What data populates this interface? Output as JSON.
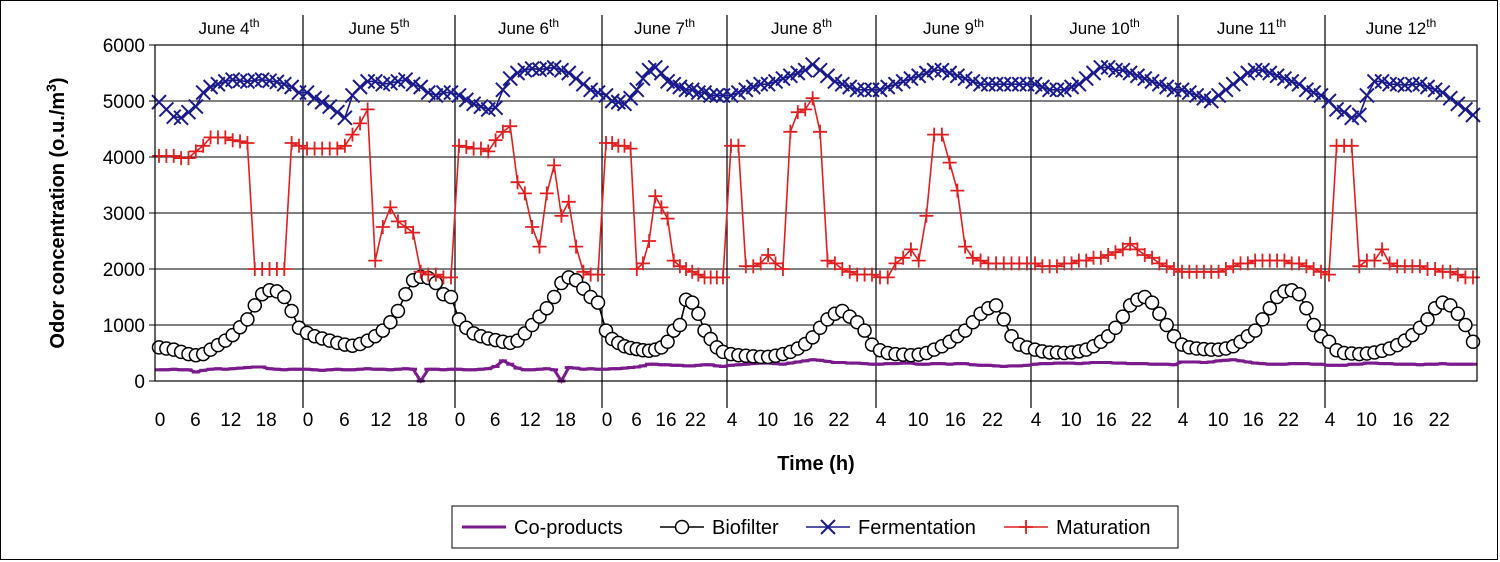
{
  "chart_data": {
    "type": "line",
    "xlabel": "Time (h)",
    "ylabel": "Odor concentration (o.u./m",
    "ylabel_sup": "3",
    "ylabel_close": ")",
    "ylim": [
      0,
      6000
    ],
    "yticks": [
      "0",
      "1000",
      "2000",
      "3000",
      "4000",
      "5000",
      "6000"
    ],
    "grid": "horizontal",
    "legend_position": "bottom",
    "days": [
      {
        "label": "June 4",
        "sup": "th"
      },
      {
        "label": "June 5",
        "sup": "th"
      },
      {
        "label": "June 6",
        "sup": "th"
      },
      {
        "label": "June 7",
        "sup": "th"
      },
      {
        "label": "June 8",
        "sup": "th"
      },
      {
        "label": "June 9",
        "sup": "th"
      },
      {
        "label": "June 10",
        "sup": "th"
      },
      {
        "label": "June 11",
        "sup": "th"
      },
      {
        "label": "June 12",
        "sup": "th"
      }
    ],
    "day_ticks": [
      [
        "0",
        "6",
        "12",
        "18"
      ],
      [
        "0",
        "6",
        "12",
        "18"
      ],
      [
        "0",
        "6",
        "12",
        "18"
      ],
      [
        "0",
        "6",
        "16",
        "22"
      ],
      [
        "4",
        "10",
        "16",
        "22"
      ],
      [
        "4",
        "10",
        "16",
        "22"
      ],
      [
        "4",
        "10",
        "16",
        "22"
      ],
      [
        "4",
        "10",
        "16",
        "22"
      ],
      [
        "4",
        "10",
        "16",
        "22"
      ]
    ],
    "series": [
      {
        "name": "Co-products",
        "color": "#7a1a8c",
        "marker": "dash",
        "values": [
          [
            200,
            200,
            210,
            200,
            200,
            160,
            190,
            210,
            220,
            210,
            220,
            230,
            240,
            250,
            250,
            220,
            210,
            200,
            210,
            210
          ],
          [
            210,
            200,
            190,
            200,
            210,
            200,
            200,
            210,
            220,
            210,
            210,
            200,
            210,
            220,
            210,
            0,
            210,
            210,
            200,
            210
          ],
          [
            210,
            200,
            200,
            210,
            220,
            260,
            360,
            300,
            230,
            200,
            200,
            210,
            220,
            200,
            0,
            240,
            230,
            210,
            220,
            210
          ],
          [
            210,
            220,
            220,
            230,
            240,
            250,
            270,
            300,
            300,
            290,
            290,
            280,
            280,
            270,
            270,
            280,
            290,
            290,
            270,
            260
          ],
          [
            280,
            290,
            300,
            310,
            320,
            320,
            310,
            300,
            320,
            340,
            360,
            380,
            370,
            350,
            330,
            330,
            320,
            320,
            310,
            300
          ],
          [
            300,
            310,
            310,
            320,
            320,
            300,
            300,
            310,
            310,
            300,
            310,
            310,
            290,
            280,
            280,
            270,
            260,
            270,
            270,
            280
          ],
          [
            300,
            310,
            310,
            320,
            320,
            320,
            310,
            320,
            330,
            330,
            330,
            320,
            320,
            310,
            310,
            310,
            300,
            300,
            300,
            290
          ],
          [
            340,
            340,
            340,
            330,
            340,
            360,
            370,
            380,
            360,
            340,
            320,
            310,
            300,
            300,
            300,
            310,
            310,
            310,
            300,
            300
          ],
          [
            280,
            280,
            280,
            300,
            300,
            320,
            320,
            310,
            310,
            300,
            300,
            300,
            290,
            300,
            300,
            310,
            300,
            300,
            300,
            300
          ]
        ]
      },
      {
        "name": "Biofilter",
        "color": "#000000",
        "marker": "circle",
        "values": [
          [
            600,
            580,
            560,
            520,
            480,
            460,
            480,
            560,
            640,
            720,
            820,
            960,
            1100,
            1350,
            1550,
            1620,
            1600,
            1500,
            1250,
            950
          ],
          [
            860,
            800,
            760,
            720,
            680,
            650,
            630,
            660,
            720,
            800,
            900,
            1050,
            1250,
            1550,
            1800,
            1860,
            1840,
            1750,
            1550,
            1500
          ],
          [
            1100,
            950,
            850,
            800,
            760,
            730,
            700,
            680,
            720,
            850,
            1000,
            1150,
            1300,
            1500,
            1750,
            1850,
            1800,
            1650,
            1500,
            1400
          ],
          [
            900,
            750,
            680,
            620,
            590,
            570,
            550,
            540,
            560,
            600,
            700,
            900,
            1000,
            1450,
            1400,
            1200,
            900,
            750,
            600,
            520
          ],
          [
            480,
            460,
            450,
            440,
            430,
            430,
            450,
            480,
            520,
            580,
            660,
            780,
            950,
            1100,
            1200,
            1250,
            1150,
            1050,
            900,
            650
          ],
          [
            550,
            500,
            480,
            470,
            460,
            470,
            500,
            560,
            620,
            700,
            800,
            900,
            1050,
            1200,
            1300,
            1350,
            1100,
            800,
            650,
            600
          ],
          [
            560,
            530,
            510,
            510,
            500,
            510,
            530,
            560,
            620,
            700,
            800,
            950,
            1150,
            1350,
            1450,
            1500,
            1400,
            1200,
            1000,
            800
          ],
          [
            650,
            600,
            580,
            570,
            560,
            560,
            580,
            620,
            700,
            800,
            900,
            1100,
            1300,
            1500,
            1600,
            1620,
            1550,
            1300,
            1000,
            800
          ],
          [
            700,
            550,
            500,
            490,
            480,
            490,
            510,
            540,
            580,
            640,
            720,
            820,
            950,
            1100,
            1300,
            1400,
            1350,
            1200,
            1000,
            700
          ]
        ]
      },
      {
        "name": "Fermentation",
        "color": "#1a1a8c",
        "marker": "x",
        "values": [
          [
            4980,
            4850,
            4720,
            4700,
            4800,
            4900,
            5150,
            5250,
            5300,
            5350,
            5380,
            5360,
            5350,
            5370,
            5380,
            5360,
            5340,
            5300,
            5250,
            5150
          ],
          [
            5150,
            5050,
            4980,
            4900,
            4800,
            4700,
            5100,
            5250,
            5350,
            5350,
            5300,
            5320,
            5350,
            5380,
            5300,
            5250,
            5150,
            5100,
            5150,
            5150
          ],
          [
            5100,
            5020,
            4950,
            4900,
            4850,
            4880,
            5200,
            5400,
            5500,
            5550,
            5580,
            5560,
            5580,
            5600,
            5550,
            5500,
            5400,
            5300,
            5200,
            5150
          ],
          [
            5100,
            5000,
            4980,
            4950,
            5050,
            5200,
            5400,
            5550,
            5600,
            5500,
            5350,
            5300,
            5250,
            5200,
            5200,
            5150,
            5150,
            5100,
            5100,
            5100
          ],
          [
            5100,
            5150,
            5200,
            5250,
            5300,
            5300,
            5350,
            5400,
            5450,
            5500,
            5550,
            5650,
            5550,
            5450,
            5350,
            5300,
            5250,
            5200,
            5200,
            5200
          ],
          [
            5200,
            5250,
            5300,
            5350,
            5400,
            5450,
            5500,
            5550,
            5550,
            5500,
            5450,
            5400,
            5350,
            5300,
            5300,
            5300,
            5300,
            5300,
            5300,
            5300
          ],
          [
            5300,
            5250,
            5200,
            5200,
            5200,
            5250,
            5300,
            5400,
            5500,
            5600,
            5600,
            5550,
            5550,
            5500,
            5450,
            5400,
            5350,
            5300,
            5250,
            5200
          ],
          [
            5200,
            5150,
            5100,
            5050,
            5000,
            5100,
            5200,
            5300,
            5400,
            5500,
            5550,
            5550,
            5500,
            5450,
            5400,
            5350,
            5300,
            5200,
            5150,
            5100
          ],
          [
            5000,
            4850,
            4800,
            4700,
            4750,
            5100,
            5350,
            5350,
            5300,
            5300,
            5280,
            5300,
            5300,
            5250,
            5200,
            5150,
            5050,
            4950,
            4850,
            4750
          ]
        ]
      },
      {
        "name": "Maturation",
        "color": "#e02020",
        "marker": "plus",
        "values": [
          [
            4020,
            4020,
            4020,
            3980,
            3980,
            4100,
            4200,
            4350,
            4350,
            4350,
            4300,
            4280,
            4250,
            2000,
            2000,
            2000,
            2000,
            2000,
            4250,
            4200
          ],
          [
            4150,
            4150,
            4150,
            4150,
            4150,
            4200,
            4400,
            4600,
            4850,
            2150,
            2750,
            3100,
            2850,
            2750,
            2650,
            1950,
            1900,
            1900,
            1850,
            1850
          ],
          [
            4200,
            4180,
            4150,
            4150,
            4100,
            4300,
            4450,
            4550,
            3550,
            3350,
            2750,
            2400,
            3350,
            3850,
            2950,
            3200,
            2400,
            1950,
            1900,
            1900
          ],
          [
            4250,
            4250,
            4200,
            4200,
            4150,
            2000,
            2100,
            2500,
            3300,
            3100,
            2900,
            2150,
            2050,
            2000,
            1950,
            1900,
            1850,
            1850,
            1850,
            1850
          ],
          [
            4200,
            4200,
            2050,
            2050,
            2100,
            2250,
            2100,
            2000,
            4450,
            4800,
            4850,
            5050,
            4450,
            2150,
            2100,
            2000,
            1950,
            1900,
            1900,
            1900
          ],
          [
            1850,
            1850,
            2100,
            2200,
            2350,
            2150,
            2950,
            4400,
            4400,
            3900,
            3400,
            2400,
            2200,
            2150,
            2100,
            2100,
            2100,
            2100,
            2100,
            2100
          ],
          [
            2100,
            2050,
            2050,
            2050,
            2100,
            2100,
            2150,
            2150,
            2200,
            2200,
            2250,
            2300,
            2350,
            2450,
            2350,
            2250,
            2200,
            2100,
            2050,
            2000
          ],
          [
            1950,
            1950,
            1950,
            1950,
            1950,
            1950,
            2000,
            2050,
            2100,
            2100,
            2150,
            2150,
            2150,
            2150,
            2150,
            2100,
            2100,
            2050,
            2000,
            1950
          ],
          [
            1900,
            4200,
            4200,
            4200,
            2050,
            2150,
            2150,
            2350,
            2100,
            2050,
            2050,
            2050,
            2050,
            2000,
            2000,
            1950,
            1950,
            1900,
            1850,
            1850
          ]
        ]
      }
    ]
  }
}
